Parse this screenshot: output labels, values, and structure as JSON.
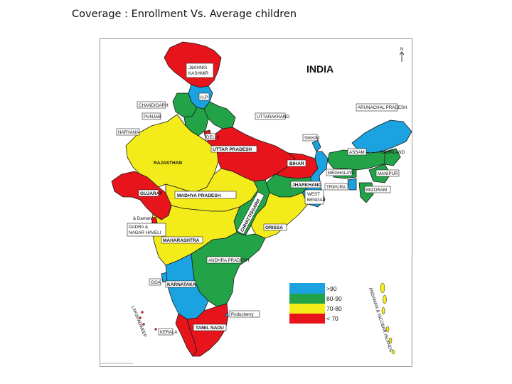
{
  "title": "Coverage : Enrollment Vs. Average children",
  "map": {
    "country": "INDIA",
    "north_symbol": "N",
    "colors": {
      "gt90": "#1aa3e0",
      "c80_90": "#22a347",
      "c70_80": "#f4ec1a",
      "lt70": "#e8141c"
    },
    "legend": [
      {
        "label": ">90",
        "color": "#1aa3e0"
      },
      {
        "label": "80-90",
        "color": "#22a347"
      },
      {
        "label": "70-80",
        "color": "#f4ec1a"
      },
      {
        "label": "< 70",
        "color": "#e8141c"
      }
    ],
    "labels": {
      "jk": "J&KHNIS",
      "jk2": "KASHMIR",
      "hp": "H.P",
      "chandigarh": "CHANDIGARH",
      "punjab": "PUNJAB",
      "haryana": "HARYANA",
      "uttarakhand": "UTTARAKHAND",
      "delhi": "DELHI",
      "arunachal": "ARUNACHAL PRADESH",
      "sikkim": "SIKKIM",
      "rajasthan": "RAJASTHAN",
      "up": "UTTAR PRADESH",
      "bihar": "BIHAR",
      "assam": "ASSAM",
      "nagaland": "NAGALAND",
      "meghalaya": "MEGHALAYA",
      "manipur": "MANIPUR",
      "tripura": "TRIPURA",
      "mizoram": "MIZORAM",
      "gujarat": "GUJARAT",
      "mp": "MADHYA PRADESH",
      "jharkhand": "JHARKHAND",
      "wb": "WEST",
      "wb2": "BENGAL",
      "chhattisgarh": "CHHATTISGARH",
      "daman": "& Daman",
      "dnh": "DADRA &",
      "dnh2": "NAGAR HAVELI",
      "orissa": "ORISSA",
      "maharashtra": "MAHARASHTRA",
      "ap": "ANDHRA PRADESH",
      "goa": "GOA",
      "karnataka": "KARNATAKA",
      "puducherry": "Puducherry",
      "lakshadweep": "LAKSHADWEEP",
      "kerala": "KERALA",
      "tamilnadu": "TAMIL NADU",
      "andaman": "ANDAMAN & NICOBAR ISLANDS"
    }
  }
}
